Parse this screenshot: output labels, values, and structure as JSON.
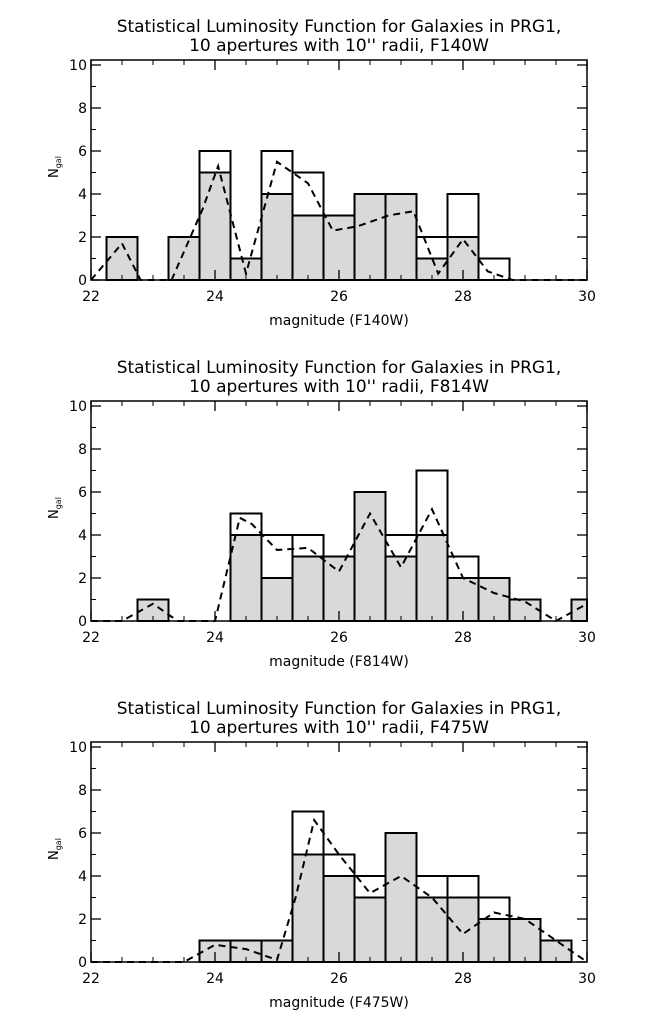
{
  "chart_data": [
    {
      "type": "bar",
      "title": "Statistical Luminosity Function for Galaxies in PRG1,",
      "subtitle": "10 apertures with 10'' radii, F140W",
      "xlabel": "magnitude (F140W)",
      "ylabel": "N",
      "ylabel_sub": "gal",
      "xlim": [
        22,
        30
      ],
      "ylim": [
        0,
        10
      ],
      "xticks": [
        22,
        24,
        26,
        28,
        30
      ],
      "xtick_labels": [
        "22",
        "24",
        "26",
        "28",
        "30"
      ],
      "yticks": [
        0,
        2,
        4,
        6,
        8,
        10
      ],
      "ytick_labels": [
        "0",
        "2",
        "4",
        "6",
        "8",
        "10"
      ],
      "bin_edges": [
        22.25,
        22.75,
        23.25,
        23.75,
        24.25,
        24.75,
        25.25,
        25.75,
        26.25,
        26.75,
        27.25,
        27.75,
        28.25,
        28.75
      ],
      "series": [
        {
          "style": "outline",
          "values": [
            2,
            0,
            2,
            6,
            1,
            6,
            5,
            3,
            4,
            4,
            2,
            4,
            1
          ]
        },
        {
          "style": "filled",
          "values": [
            2,
            0,
            2,
            5,
            1,
            4,
            3,
            3,
            4,
            4,
            1,
            2,
            0
          ]
        },
        {
          "style": "dashed",
          "x": [
            22.0,
            22.5,
            22.8,
            23.3,
            23.8,
            24.05,
            24.5,
            25.0,
            25.5,
            25.9,
            26.3,
            26.8,
            27.2,
            27.6,
            28.0,
            28.4,
            28.8,
            29.2,
            30.0
          ],
          "y": [
            0,
            1.7,
            0,
            0,
            3.3,
            5.3,
            0.3,
            5.5,
            4.5,
            2.3,
            2.5,
            3.0,
            3.2,
            0.3,
            1.9,
            0.4,
            0,
            0,
            0
          ]
        }
      ],
      "colors": {
        "fill": "#d9d9d9",
        "line": "#000000"
      }
    },
    {
      "type": "bar",
      "title": "Statistical Luminosity Function for Galaxies in PRG1,",
      "subtitle": "10 apertures with 10'' radii, F814W",
      "xlabel": "magnitude (F814W)",
      "ylabel": "N",
      "ylabel_sub": "gal",
      "xlim": [
        22,
        30
      ],
      "ylim": [
        0,
        10
      ],
      "xticks": [
        22,
        24,
        26,
        28,
        30
      ],
      "xtick_labels": [
        "22",
        "24",
        "26",
        "28",
        "30"
      ],
      "yticks": [
        0,
        2,
        4,
        6,
        8,
        10
      ],
      "ytick_labels": [
        "0",
        "2",
        "4",
        "6",
        "8",
        "10"
      ],
      "bin_edges": [
        22.75,
        23.25,
        23.75,
        24.25,
        24.75,
        25.25,
        25.75,
        26.25,
        26.75,
        27.25,
        27.75,
        28.25,
        28.75,
        29.25,
        29.75,
        30.0
      ],
      "series": [
        {
          "style": "outline",
          "values": [
            1,
            0,
            0,
            5,
            4,
            4,
            3,
            6,
            4,
            7,
            3,
            2,
            1,
            0,
            1
          ]
        },
        {
          "style": "filled",
          "values": [
            1,
            0,
            0,
            4,
            2,
            3,
            3,
            6,
            3,
            4,
            2,
            2,
            1,
            0,
            1
          ]
        },
        {
          "style": "dashed",
          "x": [
            22.0,
            22.5,
            23.0,
            23.4,
            24.0,
            24.4,
            24.6,
            25.0,
            25.5,
            26.0,
            26.5,
            27.0,
            27.5,
            28.0,
            28.5,
            29.0,
            29.5,
            30.0
          ],
          "y": [
            0,
            0,
            0.8,
            0,
            0,
            4.8,
            4.5,
            3.3,
            3.4,
            2.3,
            5.0,
            2.5,
            5.2,
            2.0,
            1.3,
            0.9,
            0,
            0.8
          ]
        }
      ],
      "colors": {
        "fill": "#d9d9d9",
        "line": "#000000"
      }
    },
    {
      "type": "bar",
      "title": "Statistical Luminosity Function for Galaxies in PRG1,",
      "subtitle": "10 apertures with 10'' radii, F475W",
      "xlabel": "magnitude (F475W)",
      "ylabel": "N",
      "ylabel_sub": "gal",
      "xlim": [
        22,
        30
      ],
      "ylim": [
        0,
        10
      ],
      "xticks": [
        22,
        24,
        26,
        28,
        30
      ],
      "xtick_labels": [
        "22",
        "24",
        "26",
        "28",
        "30"
      ],
      "yticks": [
        0,
        2,
        4,
        6,
        8,
        10
      ],
      "ytick_labels": [
        "0",
        "2",
        "4",
        "6",
        "8",
        "10"
      ],
      "bin_edges": [
        23.75,
        24.25,
        24.75,
        25.25,
        25.75,
        26.25,
        26.75,
        27.25,
        27.75,
        28.25,
        28.75,
        29.25,
        29.75
      ],
      "series": [
        {
          "style": "outline",
          "values": [
            1,
            1,
            1,
            7,
            5,
            4,
            6,
            4,
            4,
            3,
            2,
            1
          ]
        },
        {
          "style": "filled",
          "values": [
            1,
            1,
            1,
            5,
            4,
            3,
            6,
            3,
            3,
            2,
            2,
            1
          ]
        },
        {
          "style": "dashed",
          "x": [
            22.0,
            23.5,
            24.0,
            24.5,
            25.0,
            25.3,
            25.6,
            26.0,
            26.5,
            27.0,
            27.5,
            28.0,
            28.5,
            29.0,
            29.5,
            30.0
          ],
          "y": [
            0,
            0,
            0.8,
            0.6,
            0.1,
            3.0,
            6.6,
            5.0,
            3.2,
            4.0,
            3.0,
            1.3,
            2.3,
            2.0,
            1.0,
            0
          ]
        }
      ],
      "colors": {
        "fill": "#d9d9d9",
        "line": "#000000"
      }
    }
  ]
}
